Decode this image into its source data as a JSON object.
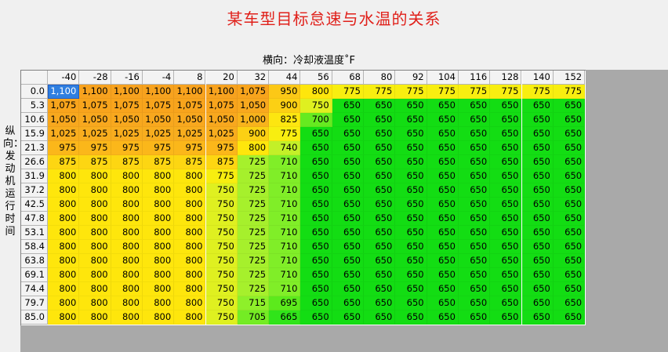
{
  "title": "某车型目标怠速与水温的关系",
  "x_axis_label": "横向：冷却液温度˚F",
  "y_axis_label": "纵向：发动机运行时间",
  "colors": {
    "title": "#e0201a",
    "selected": "#2f7fe0",
    "c1100": "#f7a21e",
    "c1075": "#f8a41c",
    "c1050": "#f8a81e",
    "c1025": "#f8ad1e",
    "c1000": "#f8b31c",
    "c975": "#fbb71a",
    "c950": "#fcc816",
    "c900": "#fcd014",
    "c875": "#fdd612",
    "c825": "#fde610",
    "c800": "#fee60c",
    "c775": "#f8ee10",
    "c750": "#dff020",
    "c740": "#c3f028",
    "c725": "#a6f02c",
    "c715": "#8ef02a",
    "c710": "#80ee28",
    "c705": "#74ec24",
    "c700": "#66ea20",
    "c695": "#5cea1c",
    "c665": "#30e41a",
    "c650": "#13dd13"
  },
  "table": {
    "columns": [
      "-40",
      "-28",
      "-16",
      "-4",
      "8",
      "20",
      "32",
      "44",
      "56",
      "68",
      "80",
      "92",
      "104",
      "116",
      "128",
      "140",
      "152"
    ],
    "row_headers": [
      "0.0",
      "5.3",
      "10.6",
      "15.9",
      "21.3",
      "26.6",
      "31.9",
      "37.2",
      "42.5",
      "47.8",
      "53.1",
      "58.4",
      "63.8",
      "69.1",
      "74.4",
      "79.7",
      "85.0"
    ],
    "selected_cell": [
      0,
      0
    ],
    "rows": [
      [
        "1,100",
        "1,100",
        "1,100",
        "1,100",
        "1,100",
        "1,100",
        "1,075",
        "950",
        "800",
        "775",
        "775",
        "775",
        "775",
        "775",
        "775",
        "775",
        "775"
      ],
      [
        "1,075",
        "1,075",
        "1,075",
        "1,075",
        "1,075",
        "1,075",
        "1,050",
        "900",
        "750",
        "650",
        "650",
        "650",
        "650",
        "650",
        "650",
        "650",
        "650"
      ],
      [
        "1,050",
        "1,050",
        "1,050",
        "1,050",
        "1,050",
        "1,050",
        "1,000",
        "825",
        "700",
        "650",
        "650",
        "650",
        "650",
        "650",
        "650",
        "650",
        "650"
      ],
      [
        "1,025",
        "1,025",
        "1,025",
        "1,025",
        "1,025",
        "1,025",
        "900",
        "775",
        "650",
        "650",
        "650",
        "650",
        "650",
        "650",
        "650",
        "650",
        "650"
      ],
      [
        "975",
        "975",
        "975",
        "975",
        "975",
        "975",
        "800",
        "740",
        "650",
        "650",
        "650",
        "650",
        "650",
        "650",
        "650",
        "650",
        "650"
      ],
      [
        "875",
        "875",
        "875",
        "875",
        "875",
        "875",
        "725",
        "710",
        "650",
        "650",
        "650",
        "650",
        "650",
        "650",
        "650",
        "650",
        "650"
      ],
      [
        "800",
        "800",
        "800",
        "800",
        "800",
        "775",
        "725",
        "710",
        "650",
        "650",
        "650",
        "650",
        "650",
        "650",
        "650",
        "650",
        "650"
      ],
      [
        "800",
        "800",
        "800",
        "800",
        "800",
        "750",
        "725",
        "710",
        "650",
        "650",
        "650",
        "650",
        "650",
        "650",
        "650",
        "650",
        "650"
      ],
      [
        "800",
        "800",
        "800",
        "800",
        "800",
        "750",
        "725",
        "710",
        "650",
        "650",
        "650",
        "650",
        "650",
        "650",
        "650",
        "650",
        "650"
      ],
      [
        "800",
        "800",
        "800",
        "800",
        "800",
        "750",
        "725",
        "710",
        "650",
        "650",
        "650",
        "650",
        "650",
        "650",
        "650",
        "650",
        "650"
      ],
      [
        "800",
        "800",
        "800",
        "800",
        "800",
        "750",
        "725",
        "710",
        "650",
        "650",
        "650",
        "650",
        "650",
        "650",
        "650",
        "650",
        "650"
      ],
      [
        "800",
        "800",
        "800",
        "800",
        "800",
        "750",
        "725",
        "710",
        "650",
        "650",
        "650",
        "650",
        "650",
        "650",
        "650",
        "650",
        "650"
      ],
      [
        "800",
        "800",
        "800",
        "800",
        "800",
        "750",
        "725",
        "710",
        "650",
        "650",
        "650",
        "650",
        "650",
        "650",
        "650",
        "650",
        "650"
      ],
      [
        "800",
        "800",
        "800",
        "800",
        "800",
        "750",
        "725",
        "710",
        "650",
        "650",
        "650",
        "650",
        "650",
        "650",
        "650",
        "650",
        "650"
      ],
      [
        "800",
        "800",
        "800",
        "800",
        "800",
        "750",
        "725",
        "710",
        "650",
        "650",
        "650",
        "650",
        "650",
        "650",
        "650",
        "650",
        "650"
      ],
      [
        "800",
        "800",
        "800",
        "800",
        "800",
        "750",
        "715",
        "695",
        "650",
        "650",
        "650",
        "650",
        "650",
        "650",
        "650",
        "650",
        "650"
      ],
      [
        "800",
        "800",
        "800",
        "800",
        "800",
        "750",
        "705",
        "665",
        "650",
        "650",
        "650",
        "650",
        "650",
        "650",
        "650",
        "650",
        "650"
      ]
    ]
  }
}
